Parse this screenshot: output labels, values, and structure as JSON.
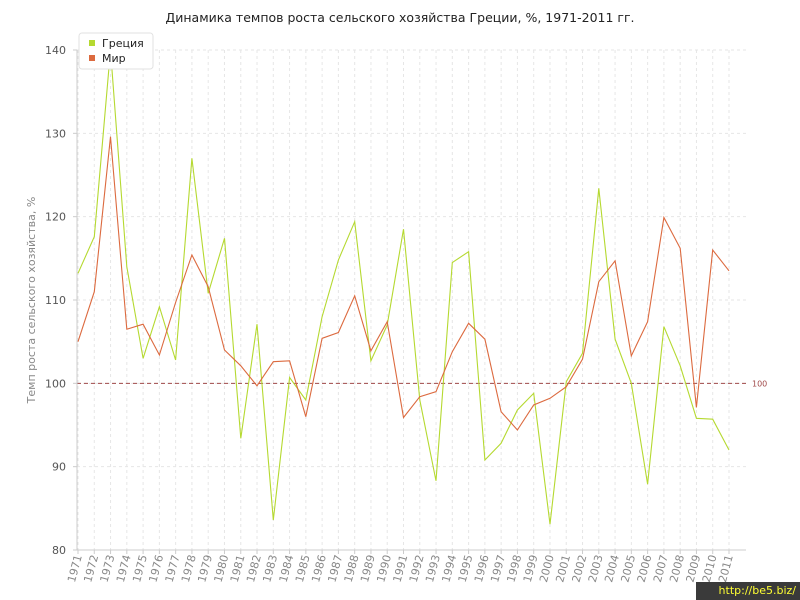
{
  "chart_data": {
    "type": "line",
    "title": "Динамика темпов роста сельского хозяйства Греции, %, 1971-2011 гг.",
    "xlabel": "",
    "ylabel": "Темп роста сельского хозяйства, %",
    "ylim": [
      80,
      140
    ],
    "yticks": [
      80,
      90,
      100,
      110,
      120,
      130,
      140
    ],
    "grid": true,
    "legend_position": "top-left",
    "categories": [
      "1971",
      "1972",
      "1973",
      "1974",
      "1975",
      "1976",
      "1977",
      "1978",
      "1979",
      "1980",
      "1981",
      "1982",
      "1983",
      "1984",
      "1985",
      "1986",
      "1987",
      "1988",
      "1989",
      "1990",
      "1991",
      "1992",
      "1993",
      "1994",
      "1995",
      "1996",
      "1997",
      "1998",
      "1999",
      "2000",
      "2001",
      "2002",
      "2003",
      "2004",
      "2005",
      "2006",
      "2007",
      "2008",
      "2009",
      "2010",
      "2011"
    ],
    "series": [
      {
        "name": "Греция",
        "color": "#b5d930",
        "values": [
          113.2,
          117.6,
          140.0,
          114.0,
          103.0,
          109.2,
          102.8,
          127.0,
          110.8,
          117.4,
          93.4,
          107.1,
          83.6,
          100.7,
          98.0,
          108.0,
          114.8,
          119.4,
          102.7,
          107.0,
          118.5,
          98.0,
          88.3,
          114.5,
          115.8,
          90.8,
          92.8,
          96.8,
          98.8,
          83.1,
          100.2,
          103.6,
          123.4,
          105.3,
          100.0,
          87.9,
          106.8,
          102.1,
          95.8,
          95.7,
          92.0
        ]
      },
      {
        "name": "Мир",
        "color": "#dc6a3f",
        "values": [
          105.0,
          111.0,
          129.6,
          106.5,
          107.1,
          103.4,
          109.7,
          115.4,
          111.6,
          104.0,
          102.1,
          99.7,
          102.6,
          102.7,
          96.0,
          105.4,
          106.1,
          110.5,
          103.9,
          107.4,
          95.9,
          98.4,
          99.0,
          103.8,
          107.2,
          105.3,
          96.6,
          94.4,
          97.4,
          98.2,
          99.6,
          102.9,
          112.2,
          114.7,
          103.3,
          107.4,
          119.9,
          116.2,
          97.1,
          116.0,
          113.5
        ]
      }
    ],
    "reference_line": {
      "value": 100,
      "label": "100",
      "color": "#a14a4a"
    }
  },
  "watermark": {
    "text": "http://be5.biz/"
  }
}
